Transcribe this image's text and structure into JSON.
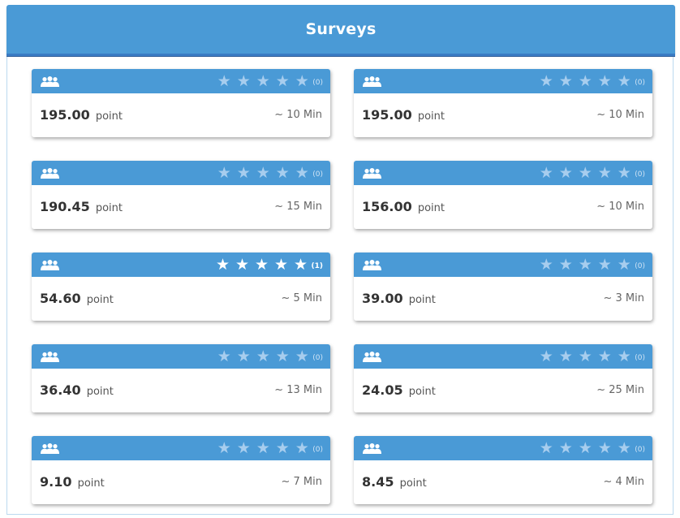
{
  "header": {
    "title": "Surveys"
  },
  "colors": {
    "accent": "#4a9ad6",
    "header_underline": "#3a7cc4",
    "star_empty": "#a7cdee",
    "star_filled": "#ffffff"
  },
  "icons": {
    "group": "people-icon",
    "star": "star-icon"
  },
  "surveys": [
    {
      "points": "195.00",
      "unit": "point",
      "duration": "~ 10 Min",
      "rating": 0,
      "rating_count": "(0)"
    },
    {
      "points": "195.00",
      "unit": "point",
      "duration": "~ 10 Min",
      "rating": 0,
      "rating_count": "(0)"
    },
    {
      "points": "190.45",
      "unit": "point",
      "duration": "~ 15 Min",
      "rating": 0,
      "rating_count": "(0)"
    },
    {
      "points": "156.00",
      "unit": "point",
      "duration": "~ 10 Min",
      "rating": 0,
      "rating_count": "(0)"
    },
    {
      "points": "54.60",
      "unit": "point",
      "duration": "~ 5 Min",
      "rating": 5,
      "rating_count": "(1)"
    },
    {
      "points": "39.00",
      "unit": "point",
      "duration": "~ 3 Min",
      "rating": 0,
      "rating_count": "(0)"
    },
    {
      "points": "36.40",
      "unit": "point",
      "duration": "~ 13 Min",
      "rating": 0,
      "rating_count": "(0)"
    },
    {
      "points": "24.05",
      "unit": "point",
      "duration": "~ 25 Min",
      "rating": 0,
      "rating_count": "(0)"
    },
    {
      "points": "9.10",
      "unit": "point",
      "duration": "~ 7 Min",
      "rating": 0,
      "rating_count": "(0)"
    },
    {
      "points": "8.45",
      "unit": "point",
      "duration": "~ 4 Min",
      "rating": 0,
      "rating_count": "(0)"
    }
  ]
}
